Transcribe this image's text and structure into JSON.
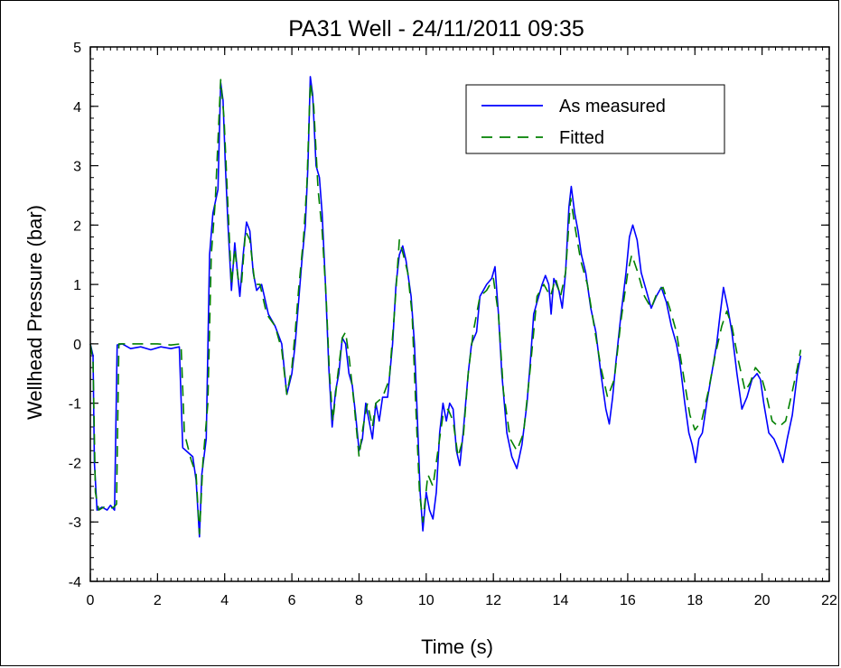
{
  "chart_data": {
    "type": "line",
    "title": "PA31 Well - 24/11/2011 09:35",
    "xlabel": "Time (s)",
    "ylabel": "Wellhead Pressure (bar)",
    "xlim": [
      0,
      22
    ],
    "ylim": [
      -4,
      5
    ],
    "xticks": [
      "0",
      "2",
      "4",
      "6",
      "8",
      "10",
      "12",
      "14",
      "16",
      "18",
      "20",
      "22"
    ],
    "yticks": [
      "5",
      "4",
      "3",
      "2",
      "1",
      "0",
      "-1",
      "-2",
      "-3",
      "-4"
    ],
    "grid": false,
    "legend_position": "top-right",
    "series": [
      {
        "name": "As measured",
        "color": "#0000ff",
        "style": "solid",
        "points": [
          [
            0,
            0
          ],
          [
            0.08,
            -0.2
          ],
          [
            0.12,
            -2.0
          ],
          [
            0.2,
            -2.8
          ],
          [
            0.35,
            -2.75
          ],
          [
            0.5,
            -2.8
          ],
          [
            0.6,
            -2.72
          ],
          [
            0.72,
            -2.8
          ],
          [
            0.8,
            -0.02
          ],
          [
            0.95,
            0
          ],
          [
            1.2,
            -0.08
          ],
          [
            1.5,
            -0.05
          ],
          [
            1.8,
            -0.1
          ],
          [
            2.1,
            -0.05
          ],
          [
            2.4,
            -0.08
          ],
          [
            2.65,
            -0.05
          ],
          [
            2.75,
            -1.75
          ],
          [
            2.95,
            -1.85
          ],
          [
            3.05,
            -1.9
          ],
          [
            3.15,
            -2.3
          ],
          [
            3.25,
            -3.25
          ],
          [
            3.32,
            -2.2
          ],
          [
            3.45,
            -1.6
          ],
          [
            3.55,
            1.5
          ],
          [
            3.65,
            2.2
          ],
          [
            3.8,
            2.6
          ],
          [
            3.88,
            4.4
          ],
          [
            3.95,
            4.1
          ],
          [
            4.02,
            3.0
          ],
          [
            4.1,
            2.0
          ],
          [
            4.2,
            0.9
          ],
          [
            4.3,
            1.7
          ],
          [
            4.38,
            1.2
          ],
          [
            4.45,
            0.8
          ],
          [
            4.55,
            1.5
          ],
          [
            4.65,
            2.05
          ],
          [
            4.75,
            1.9
          ],
          [
            4.85,
            1.2
          ],
          [
            4.95,
            0.9
          ],
          [
            5.1,
            1.0
          ],
          [
            5.3,
            0.5
          ],
          [
            5.5,
            0.3
          ],
          [
            5.7,
            0.0
          ],
          [
            5.85,
            -0.85
          ],
          [
            6.0,
            -0.5
          ],
          [
            6.1,
            0.0
          ],
          [
            6.2,
            0.7
          ],
          [
            6.3,
            1.4
          ],
          [
            6.4,
            2.0
          ],
          [
            6.48,
            3.0
          ],
          [
            6.55,
            4.5
          ],
          [
            6.62,
            4.2
          ],
          [
            6.72,
            3.0
          ],
          [
            6.82,
            2.8
          ],
          [
            6.9,
            2.2
          ],
          [
            7.0,
            1.0
          ],
          [
            7.1,
            -0.4
          ],
          [
            7.2,
            -1.4
          ],
          [
            7.3,
            -0.8
          ],
          [
            7.4,
            -0.5
          ],
          [
            7.5,
            0.1
          ],
          [
            7.6,
            0.0
          ],
          [
            7.7,
            -0.5
          ],
          [
            7.8,
            -0.7
          ],
          [
            7.9,
            -1.2
          ],
          [
            8.0,
            -1.8
          ],
          [
            8.1,
            -1.6
          ],
          [
            8.2,
            -1.0
          ],
          [
            8.3,
            -1.3
          ],
          [
            8.4,
            -1.6
          ],
          [
            8.5,
            -1.0
          ],
          [
            8.6,
            -1.3
          ],
          [
            8.7,
            -0.9
          ],
          [
            8.85,
            -0.9
          ],
          [
            9.0,
            0.0
          ],
          [
            9.1,
            1.0
          ],
          [
            9.2,
            1.5
          ],
          [
            9.3,
            1.65
          ],
          [
            9.4,
            1.4
          ],
          [
            9.55,
            0.8
          ],
          [
            9.65,
            0.0
          ],
          [
            9.72,
            -1.0
          ],
          [
            9.82,
            -2.5
          ],
          [
            9.9,
            -3.15
          ],
          [
            10.0,
            -2.5
          ],
          [
            10.1,
            -2.8
          ],
          [
            10.2,
            -2.95
          ],
          [
            10.3,
            -2.5
          ],
          [
            10.4,
            -1.5
          ],
          [
            10.5,
            -1.0
          ],
          [
            10.6,
            -1.3
          ],
          [
            10.7,
            -1.0
          ],
          [
            10.8,
            -1.1
          ],
          [
            10.9,
            -1.8
          ],
          [
            11.0,
            -2.05
          ],
          [
            11.1,
            -1.5
          ],
          [
            11.25,
            -0.5
          ],
          [
            11.35,
            0.0
          ],
          [
            11.5,
            0.2
          ],
          [
            11.6,
            0.8
          ],
          [
            11.8,
            1.0
          ],
          [
            11.95,
            1.1
          ],
          [
            12.05,
            1.3
          ],
          [
            12.15,
            0.5
          ],
          [
            12.25,
            -0.5
          ],
          [
            12.4,
            -1.5
          ],
          [
            12.55,
            -1.9
          ],
          [
            12.7,
            -2.1
          ],
          [
            12.85,
            -1.7
          ],
          [
            13.0,
            -1.0
          ],
          [
            13.1,
            -0.3
          ],
          [
            13.2,
            0.5
          ],
          [
            13.3,
            0.7
          ],
          [
            13.45,
            1.0
          ],
          [
            13.55,
            1.15
          ],
          [
            13.65,
            1.0
          ],
          [
            13.72,
            0.5
          ],
          [
            13.8,
            1.1
          ],
          [
            13.95,
            0.9
          ],
          [
            14.05,
            0.6
          ],
          [
            14.15,
            1.2
          ],
          [
            14.25,
            2.3
          ],
          [
            14.32,
            2.65
          ],
          [
            14.42,
            2.2
          ],
          [
            14.52,
            1.9
          ],
          [
            14.62,
            1.5
          ],
          [
            14.75,
            1.2
          ],
          [
            14.9,
            0.6
          ],
          [
            15.05,
            0.2
          ],
          [
            15.2,
            -0.5
          ],
          [
            15.35,
            -1.1
          ],
          [
            15.45,
            -1.35
          ],
          [
            15.55,
            -0.9
          ],
          [
            15.65,
            -0.3
          ],
          [
            15.8,
            0.5
          ],
          [
            15.95,
            1.2
          ],
          [
            16.05,
            1.8
          ],
          [
            16.15,
            2.0
          ],
          [
            16.28,
            1.75
          ],
          [
            16.4,
            1.2
          ],
          [
            16.55,
            0.9
          ],
          [
            16.7,
            0.6
          ],
          [
            16.85,
            0.8
          ],
          [
            17.0,
            0.95
          ],
          [
            17.15,
            0.7
          ],
          [
            17.3,
            0.3
          ],
          [
            17.45,
            0.0
          ],
          [
            17.55,
            -0.3
          ],
          [
            17.7,
            -1.0
          ],
          [
            17.82,
            -1.5
          ],
          [
            17.92,
            -1.7
          ],
          [
            18.02,
            -2.0
          ],
          [
            18.12,
            -1.6
          ],
          [
            18.22,
            -1.5
          ],
          [
            18.35,
            -1.0
          ],
          [
            18.5,
            -0.5
          ],
          [
            18.65,
            0.0
          ],
          [
            18.75,
            0.5
          ],
          [
            18.85,
            0.95
          ],
          [
            18.98,
            0.6
          ],
          [
            19.1,
            0.2
          ],
          [
            19.25,
            -0.5
          ],
          [
            19.4,
            -1.1
          ],
          [
            19.55,
            -0.9
          ],
          [
            19.7,
            -0.6
          ],
          [
            19.85,
            -0.5
          ],
          [
            19.95,
            -0.6
          ],
          [
            20.05,
            -1.0
          ],
          [
            20.2,
            -1.5
          ],
          [
            20.35,
            -1.6
          ],
          [
            20.5,
            -1.8
          ],
          [
            20.62,
            -2.0
          ],
          [
            20.75,
            -1.6
          ],
          [
            20.9,
            -1.2
          ],
          [
            21.05,
            -0.5
          ],
          [
            21.15,
            -0.2
          ]
        ]
      },
      {
        "name": "Fitted",
        "color": "#008000",
        "style": "dashed",
        "points": [
          [
            0,
            0
          ],
          [
            0.08,
            -0.3
          ],
          [
            0.15,
            -2.5
          ],
          [
            0.25,
            -2.8
          ],
          [
            0.4,
            -2.75
          ],
          [
            0.55,
            -2.78
          ],
          [
            0.7,
            -2.75
          ],
          [
            0.78,
            -2.7
          ],
          [
            0.85,
            0
          ],
          [
            1.2,
            0.0
          ],
          [
            1.6,
            0.0
          ],
          [
            2.0,
            0.0
          ],
          [
            2.4,
            -0.02
          ],
          [
            2.7,
            0.0
          ],
          [
            2.8,
            -1.5
          ],
          [
            3.0,
            -1.95
          ],
          [
            3.15,
            -2.2
          ],
          [
            3.25,
            -3.2
          ],
          [
            3.35,
            -2.0
          ],
          [
            3.5,
            -1.0
          ],
          [
            3.6,
            1.5
          ],
          [
            3.72,
            2.4
          ],
          [
            3.88,
            4.45
          ],
          [
            3.98,
            3.8
          ],
          [
            4.1,
            2.3
          ],
          [
            4.2,
            1.0
          ],
          [
            4.3,
            1.6
          ],
          [
            4.4,
            1.1
          ],
          [
            4.5,
            1.0
          ],
          [
            4.62,
            1.9
          ],
          [
            4.75,
            1.75
          ],
          [
            4.9,
            1.0
          ],
          [
            5.05,
            1.0
          ],
          [
            5.25,
            0.5
          ],
          [
            5.5,
            0.3
          ],
          [
            5.7,
            -0.1
          ],
          [
            5.85,
            -0.85
          ],
          [
            6.0,
            -0.4
          ],
          [
            6.1,
            0.2
          ],
          [
            6.2,
            0.9
          ],
          [
            6.35,
            1.8
          ],
          [
            6.45,
            2.7
          ],
          [
            6.55,
            4.4
          ],
          [
            6.65,
            4.0
          ],
          [
            6.78,
            2.6
          ],
          [
            6.9,
            1.9
          ],
          [
            7.02,
            0.8
          ],
          [
            7.12,
            -0.5
          ],
          [
            7.22,
            -1.3
          ],
          [
            7.35,
            -0.6
          ],
          [
            7.5,
            0.1
          ],
          [
            7.6,
            0.2
          ],
          [
            7.72,
            -0.3
          ],
          [
            7.85,
            -1.0
          ],
          [
            8.0,
            -1.9
          ],
          [
            8.12,
            -1.4
          ],
          [
            8.25,
            -1.0
          ],
          [
            8.4,
            -1.4
          ],
          [
            8.5,
            -1.0
          ],
          [
            8.7,
            -0.9
          ],
          [
            8.9,
            -0.6
          ],
          [
            9.05,
            0.5
          ],
          [
            9.2,
            1.75
          ],
          [
            9.32,
            1.5
          ],
          [
            9.45,
            1.2
          ],
          [
            9.58,
            0.5
          ],
          [
            9.7,
            -1.2
          ],
          [
            9.8,
            -2.5
          ],
          [
            9.9,
            -3.0
          ],
          [
            10.05,
            -2.2
          ],
          [
            10.2,
            -2.4
          ],
          [
            10.35,
            -1.8
          ],
          [
            10.5,
            -1.2
          ],
          [
            10.65,
            -1.1
          ],
          [
            10.8,
            -1.3
          ],
          [
            10.95,
            -1.9
          ],
          [
            11.1,
            -1.6
          ],
          [
            11.25,
            -0.5
          ],
          [
            11.4,
            0.2
          ],
          [
            11.6,
            0.8
          ],
          [
            11.8,
            0.9
          ],
          [
            12.0,
            1.1
          ],
          [
            12.15,
            0.5
          ],
          [
            12.3,
            -0.8
          ],
          [
            12.5,
            -1.6
          ],
          [
            12.7,
            -1.8
          ],
          [
            12.9,
            -1.5
          ],
          [
            13.1,
            -0.4
          ],
          [
            13.3,
            0.8
          ],
          [
            13.5,
            1.0
          ],
          [
            13.7,
            0.8
          ],
          [
            13.85,
            1.1
          ],
          [
            14.0,
            0.8
          ],
          [
            14.15,
            1.2
          ],
          [
            14.3,
            2.45
          ],
          [
            14.45,
            1.9
          ],
          [
            14.6,
            1.4
          ],
          [
            14.8,
            1.0
          ],
          [
            15.0,
            0.3
          ],
          [
            15.2,
            -0.4
          ],
          [
            15.4,
            -0.9
          ],
          [
            15.6,
            -0.6
          ],
          [
            15.8,
            0.4
          ],
          [
            16.0,
            1.2
          ],
          [
            16.12,
            1.5
          ],
          [
            16.3,
            1.2
          ],
          [
            16.5,
            0.8
          ],
          [
            16.7,
            0.6
          ],
          [
            16.9,
            0.9
          ],
          [
            17.05,
            0.95
          ],
          [
            17.25,
            0.6
          ],
          [
            17.45,
            0.2
          ],
          [
            17.65,
            -0.5
          ],
          [
            17.85,
            -1.2
          ],
          [
            18.0,
            -1.45
          ],
          [
            18.2,
            -1.3
          ],
          [
            18.4,
            -0.8
          ],
          [
            18.6,
            -0.2
          ],
          [
            18.8,
            0.3
          ],
          [
            18.95,
            0.55
          ],
          [
            19.1,
            0.3
          ],
          [
            19.3,
            -0.3
          ],
          [
            19.5,
            -0.8
          ],
          [
            19.65,
            -0.65
          ],
          [
            19.8,
            -0.4
          ],
          [
            19.95,
            -0.5
          ],
          [
            20.1,
            -0.8
          ],
          [
            20.3,
            -1.3
          ],
          [
            20.5,
            -1.4
          ],
          [
            20.7,
            -1.3
          ],
          [
            20.9,
            -0.8
          ],
          [
            21.05,
            -0.4
          ],
          [
            21.15,
            -0.1
          ]
        ]
      }
    ]
  }
}
